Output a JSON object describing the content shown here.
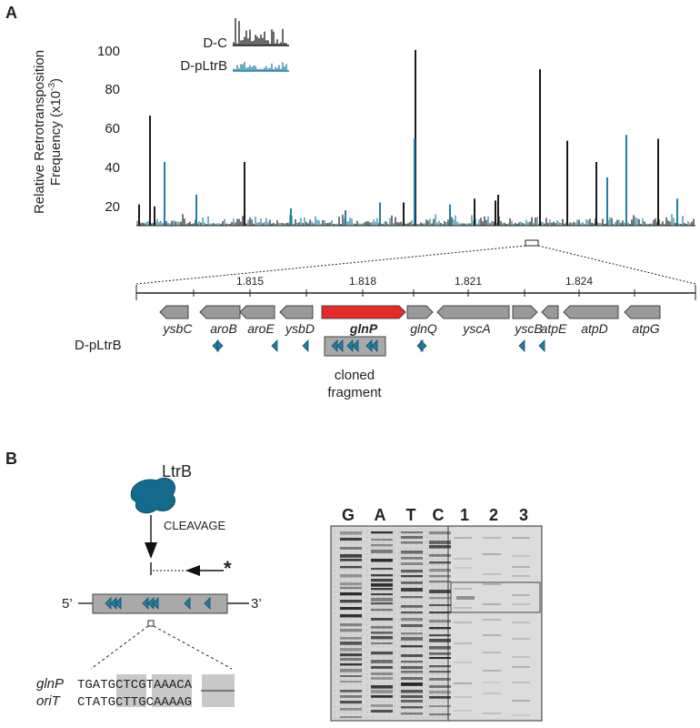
{
  "panel_a": {
    "label": "A",
    "y_axis_label_line1": "Relative Retrotransposition",
    "y_axis_label_line2": "Frequency (x10",
    "y_axis_label_exp": "-3",
    "y_axis_label_close": ")",
    "y_ticks": [
      "100",
      "80",
      "60",
      "40",
      "20"
    ],
    "legend": [
      {
        "label": "D-C",
        "color": "#1a1a1a"
      },
      {
        "label": "D-pLtrB",
        "color": "#1f7ea1"
      }
    ],
    "zoom": {
      "scale_ticks": [
        "1.815",
        "1.818",
        "1.821",
        "1.824"
      ],
      "genes": [
        {
          "name": "ysbC",
          "color": "#9a9a9a",
          "direction": "left"
        },
        {
          "name": "aroB",
          "color": "#9a9a9a",
          "direction": "left"
        },
        {
          "name": "aroE",
          "color": "#9a9a9a",
          "direction": "left"
        },
        {
          "name": "ysbD",
          "color": "#9a9a9a",
          "direction": "left"
        },
        {
          "name": "glnP",
          "color": "#e52a2a",
          "direction": "right"
        },
        {
          "name": "glnQ",
          "color": "#9a9a9a",
          "direction": "right"
        },
        {
          "name": "yscA",
          "color": "#9a9a9a",
          "direction": "left"
        },
        {
          "name": "yscB",
          "color": "#9a9a9a",
          "direction": "right"
        },
        {
          "name": "atpE",
          "color": "#9a9a9a",
          "direction": "left"
        },
        {
          "name": "atpD",
          "color": "#9a9a9a",
          "direction": "left"
        },
        {
          "name": "atpG",
          "color": "#9a9a9a",
          "direction": "left"
        }
      ],
      "track_label": "D-pLtrB",
      "cloned_fragment_line1": "cloned",
      "cloned_fragment_line2": "fragment"
    }
  },
  "panel_b": {
    "label": "B",
    "enzyme_label": "LtrB",
    "cleavage_label": "CLEAVAGE",
    "star": "*",
    "five_prime": "5’",
    "three_prime": "3’",
    "alignment": [
      {
        "name": "glnP",
        "sequence": "TGATGCTCGTAAACA"
      },
      {
        "name": "oriT",
        "sequence": "CTATGCTTGCAAAAG"
      }
    ],
    "gel_lanes": [
      "G",
      "A",
      "T",
      "C",
      "1",
      "2",
      "3"
    ]
  }
}
